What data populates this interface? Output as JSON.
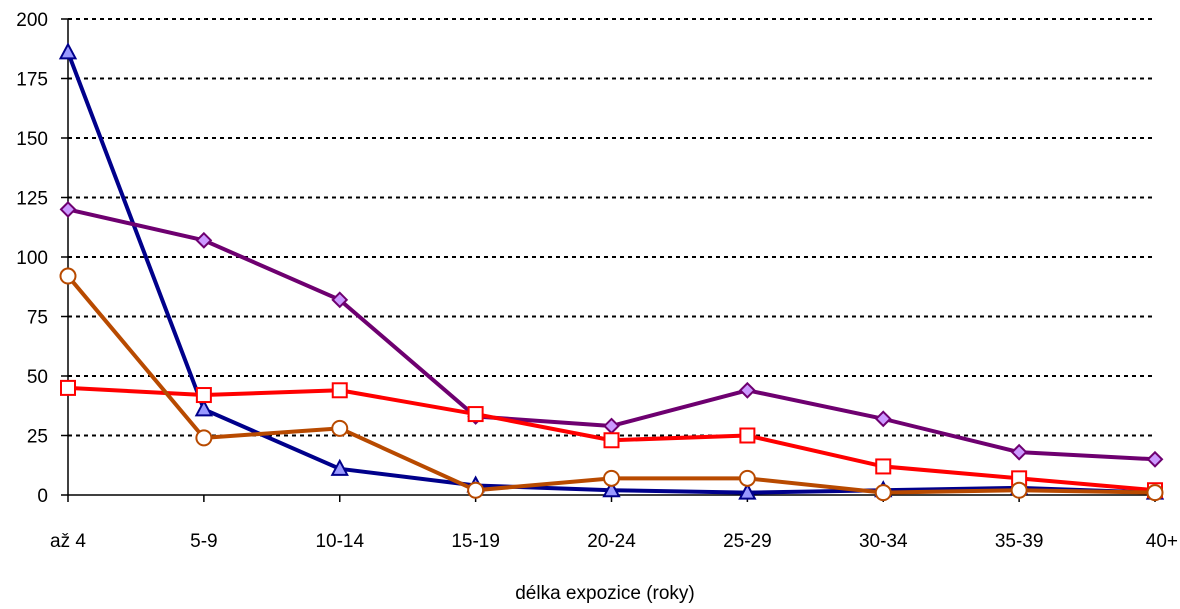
{
  "chart_data": {
    "type": "line",
    "title": "",
    "xlabel": "délka expozice (roky)",
    "ylabel": "",
    "categories": [
      "až 4",
      "5-9",
      "10-14",
      "15-19",
      "20-24",
      "25-29",
      "30-34",
      "35-39",
      "40+"
    ],
    "ylim": [
      0,
      200
    ],
    "yticks": [
      0,
      25,
      50,
      75,
      100,
      125,
      150,
      175,
      200
    ],
    "grid": "horizontal dotted",
    "legend": "none",
    "series": [
      {
        "color": "#00008b",
        "marker": "triangle",
        "marker_fill": "#9999ff",
        "values": [
          186,
          36,
          11,
          4,
          2,
          1,
          2,
          3,
          1
        ]
      },
      {
        "color": "#6e0070",
        "marker": "diamond",
        "marker_fill": "#cc99ff",
        "values": [
          120,
          107,
          82,
          33,
          29,
          44,
          32,
          18,
          15
        ]
      },
      {
        "color": "#ff0000",
        "marker": "square",
        "marker_fill": "#ffffff",
        "values": [
          45,
          42,
          44,
          34,
          23,
          25,
          12,
          7,
          2
        ]
      },
      {
        "color": "#b84a00",
        "marker": "circle",
        "marker_fill": "#ffffff",
        "values": [
          92,
          24,
          28,
          2,
          7,
          7,
          1,
          2,
          1
        ]
      }
    ]
  }
}
